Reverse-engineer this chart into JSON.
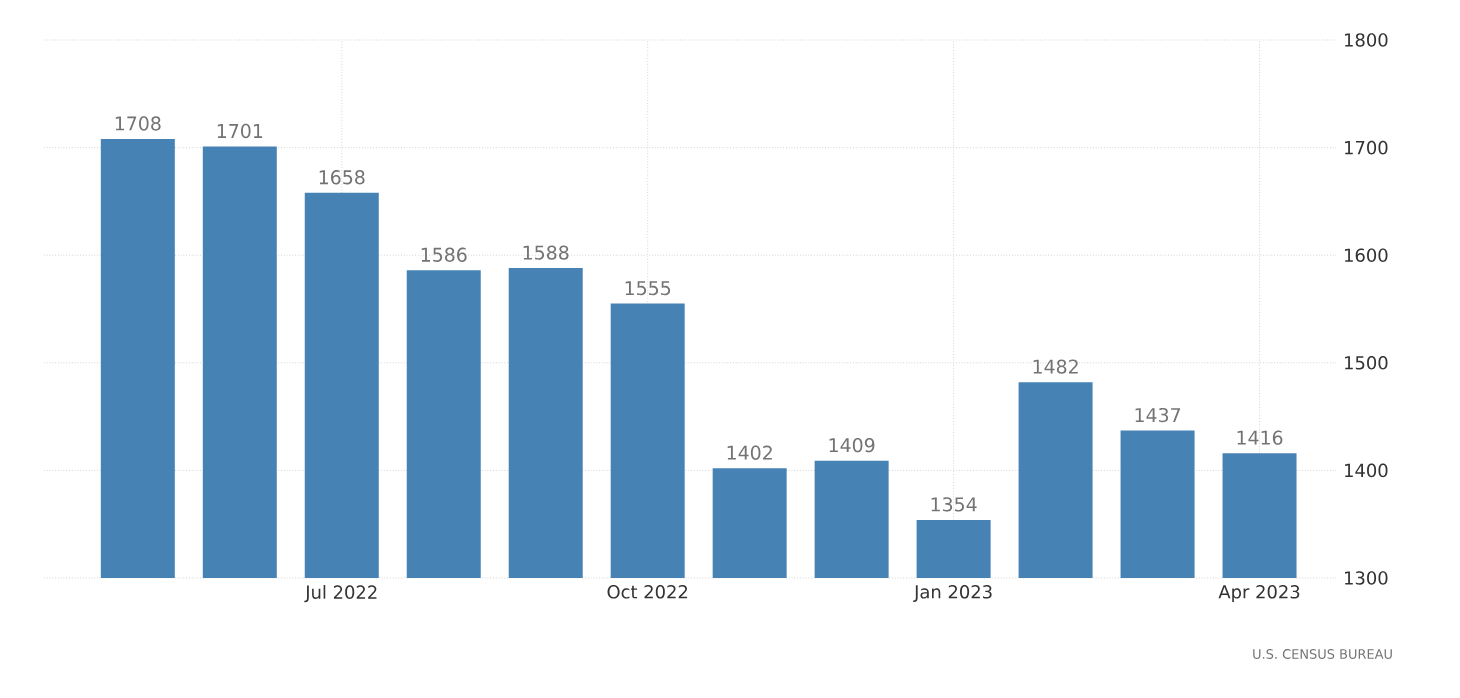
{
  "chart_data": {
    "type": "bar",
    "categories": [
      null,
      null,
      "Jul 2022",
      null,
      null,
      "Oct 2022",
      null,
      null,
      "Jan 2023",
      null,
      null,
      "Apr 2023"
    ],
    "values": [
      1708,
      1701,
      1658,
      1586,
      1588,
      1555,
      1402,
      1409,
      1354,
      1482,
      1437,
      1416
    ],
    "value_labels": [
      "1708",
      "1701",
      "1658",
      "1586",
      "1588",
      "1555",
      "1402",
      "1409",
      "1354",
      "1482",
      "1437",
      "1416"
    ],
    "color": "#4682b4",
    "ylim": [
      1300,
      1800
    ],
    "yticks": [
      1300,
      1400,
      1500,
      1600,
      1700,
      1800
    ],
    "grid": true,
    "annotations": [
      "U.S. CENSUS BUREAU"
    ]
  }
}
